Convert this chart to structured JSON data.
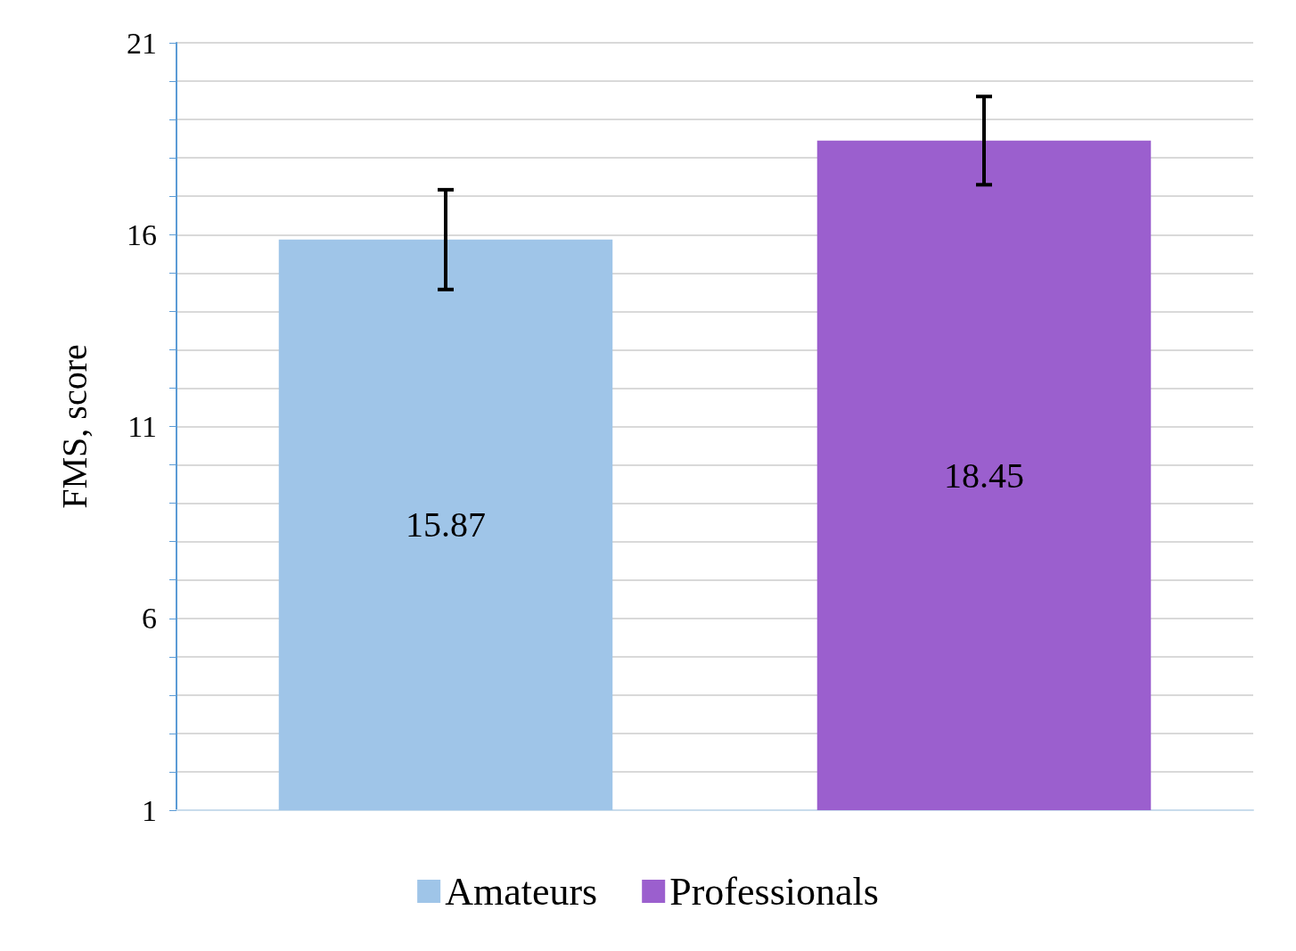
{
  "chart_data": {
    "type": "bar",
    "ylabel": "FMS, score",
    "categories": [
      null,
      null
    ],
    "series": [
      {
        "name": "Amateurs",
        "color": "#9fc5e8",
        "values": [
          15.87,
          null
        ],
        "errors": [
          1.3,
          null
        ]
      },
      {
        "name": "Professionals",
        "color": "#9b5fce",
        "values": [
          null,
          18.45
        ],
        "errors": [
          null,
          1.15
        ]
      }
    ],
    "ylim": [
      1,
      21
    ],
    "yticks": [
      1,
      {
        "value": 2,
        "label": null
      },
      {
        "value": 3,
        "label": null
      },
      {
        "value": 4,
        "label": null
      },
      {
        "value": 5,
        "label": null
      },
      6,
      {
        "value": 7,
        "label": null
      },
      {
        "value": 8,
        "label": null
      },
      {
        "value": 9,
        "label": null
      },
      {
        "value": 10,
        "label": null
      },
      11,
      {
        "value": 12,
        "label": null
      },
      {
        "value": 13,
        "label": null
      },
      {
        "value": 14,
        "label": null
      },
      {
        "value": 15,
        "label": null
      },
      16,
      {
        "value": 17,
        "label": null
      },
      {
        "value": 18,
        "label": null
      },
      {
        "value": 19,
        "label": null
      },
      {
        "value": 20,
        "label": null
      },
      21
    ],
    "grid": "y",
    "legend": "bottom",
    "data_labels": true
  }
}
